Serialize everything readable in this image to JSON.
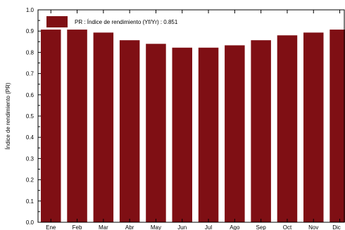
{
  "chart_data": {
    "type": "bar",
    "categories": [
      "Ene",
      "Feb",
      "Mar",
      "Abr",
      "May",
      "Jun",
      "Jul",
      "Ago",
      "Sep",
      "Oct",
      "Nov",
      "Dic"
    ],
    "series": [
      {
        "name": "PR : Índice de rendimiento (Yf/Yr) :  0.851",
        "values": [
          0.907,
          0.907,
          0.893,
          0.857,
          0.84,
          0.822,
          0.822,
          0.833,
          0.857,
          0.88,
          0.893,
          0.907
        ]
      }
    ],
    "title": "",
    "xlabel": "",
    "ylabel": "Índice de rendimiento (PR)",
    "ylim": [
      0,
      1.0
    ],
    "yticks": [
      "0.0",
      "0.1",
      "0.2",
      "0.3",
      "0.4",
      "0.5",
      "0.6",
      "0.7",
      "0.8",
      "0.9",
      "1.0"
    ],
    "grid": false,
    "legend_position": "top-left",
    "bar_color": "#7f0f14"
  }
}
